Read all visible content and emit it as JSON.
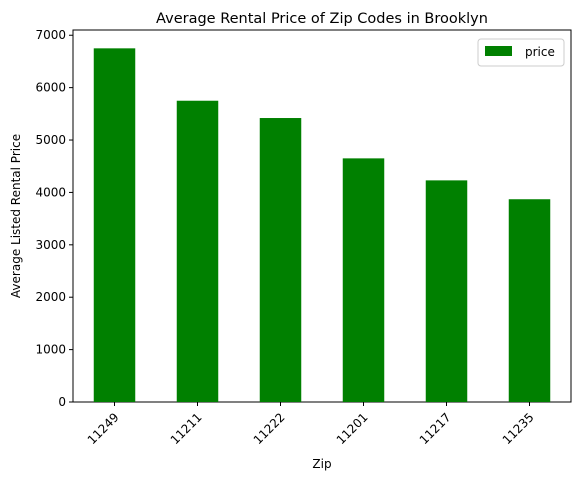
{
  "chart_data": {
    "type": "bar",
    "title": "Average Rental Price of Zip Codes in Brooklyn",
    "xlabel": "Zip",
    "ylabel": "Average Listed Rental Price",
    "categories": [
      "11249",
      "11211",
      "11222",
      "11201",
      "11217",
      "11235"
    ],
    "series": [
      {
        "name": "price",
        "values": [
          6750,
          5750,
          5420,
          4650,
          4230,
          3870
        ],
        "color": "#008000"
      }
    ],
    "ylim": [
      0,
      7100
    ],
    "yticks": [
      0,
      1000,
      2000,
      3000,
      4000,
      5000,
      6000,
      7000
    ],
    "ytick_labels": [
      "0",
      "1000",
      "2000",
      "3000",
      "4000",
      "5000",
      "6000",
      "7000"
    ],
    "xtick_rotation": 45,
    "grid": false,
    "legend_position": "top-right"
  }
}
